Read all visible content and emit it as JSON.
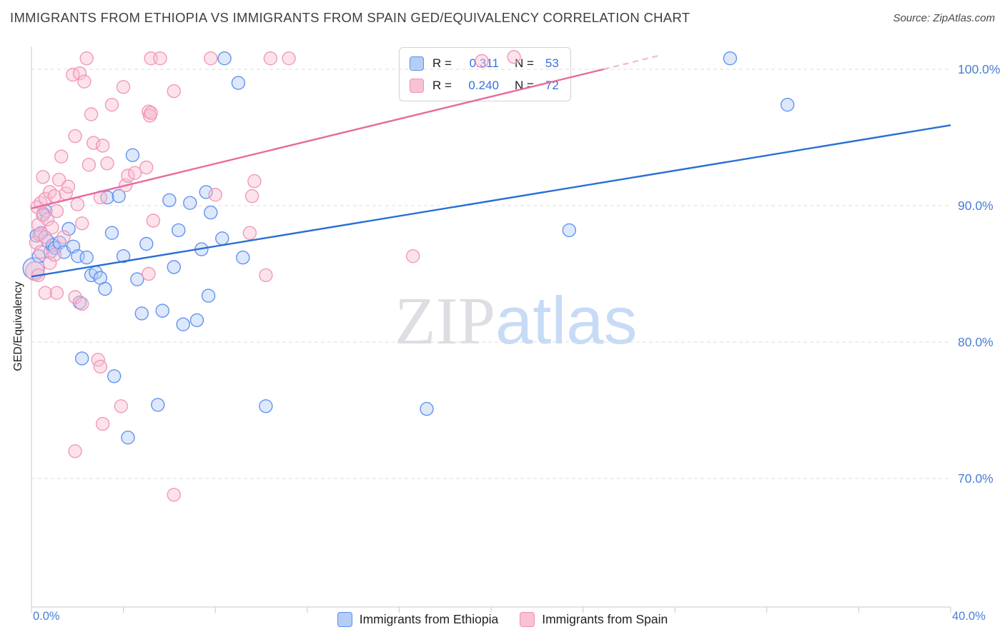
{
  "header": {
    "title": "IMMIGRANTS FROM ETHIOPIA VS IMMIGRANTS FROM SPAIN GED/EQUIVALENCY CORRELATION CHART",
    "source": "Source: ZipAtlas.com"
  },
  "watermark": {
    "zip": "ZIP",
    "atlas": "atlas"
  },
  "axes": {
    "y_label": "GED/Equivalency",
    "x_min_label": "0.0%",
    "x_max_label": "40.0%"
  },
  "stats_legend": {
    "rows": [
      {
        "r_label": "R =",
        "r_value": "0.311",
        "n_label": "N =",
        "n_value": "53",
        "swatch": {
          "bg": "#b3cdf6",
          "border": "#5b8def"
        }
      },
      {
        "r_label": "R =",
        "r_value": "0.240",
        "n_label": "N =",
        "n_value": "72",
        "swatch": {
          "bg": "#f9c2d3",
          "border": "#ef8fb4"
        }
      }
    ]
  },
  "legend": {
    "items": [
      {
        "label": "Immigrants from Ethiopia",
        "swatch": {
          "bg": "#b3cdf6",
          "border": "#5b8def"
        }
      },
      {
        "label": "Immigrants from Spain",
        "swatch": {
          "bg": "#f9c2d3",
          "border": "#ef8fb4"
        }
      }
    ]
  },
  "chart_data": {
    "type": "scatter",
    "title": "IMMIGRANTS FROM ETHIOPIA VS IMMIGRANTS FROM SPAIN GED/EQUIVALENCY CORRELATION CHART",
    "xlabel": "",
    "ylabel": "GED/Equivalency",
    "x_range": [
      0,
      40
    ],
    "y_range": [
      60.6,
      101.7
    ],
    "x_tick_step": 4,
    "x_tick_labels_shown": [
      "0.0%",
      "40.0%"
    ],
    "grid": "on",
    "legend_position": "bottom",
    "y_gridlines": [
      {
        "value": 100,
        "label": "100.0%"
      },
      {
        "value": 90,
        "label": "90.0%"
      },
      {
        "value": 80,
        "label": "80.0%"
      },
      {
        "value": 70,
        "label": "70.0%"
      }
    ],
    "series": [
      {
        "name": "Immigrants from Ethiopia",
        "R": 0.311,
        "N": 53,
        "stroke": "#5b8def",
        "fill": "#b3cdf6",
        "points": [
          [
            0.1,
            85.4,
            15
          ],
          [
            0.22,
            87.8
          ],
          [
            0.32,
            86.3
          ],
          [
            0.42,
            88.0
          ],
          [
            0.52,
            89.4
          ],
          [
            0.62,
            89.6
          ],
          [
            0.72,
            87.4
          ],
          [
            0.82,
            86.6
          ],
          [
            0.92,
            87.1
          ],
          [
            1.02,
            86.9
          ],
          [
            1.22,
            87.3
          ],
          [
            1.42,
            86.6
          ],
          [
            1.62,
            88.3
          ],
          [
            1.82,
            87.0
          ],
          [
            2.02,
            86.3
          ],
          [
            2.1,
            82.9
          ],
          [
            2.2,
            78.8
          ],
          [
            2.4,
            86.2
          ],
          [
            2.6,
            84.9
          ],
          [
            2.8,
            85.1
          ],
          [
            3.0,
            84.7
          ],
          [
            3.2,
            83.9
          ],
          [
            3.3,
            90.6
          ],
          [
            3.5,
            88.0
          ],
          [
            3.6,
            77.5
          ],
          [
            3.8,
            90.7
          ],
          [
            4.0,
            86.3
          ],
          [
            4.2,
            73.0
          ],
          [
            4.4,
            93.7
          ],
          [
            4.6,
            84.6
          ],
          [
            4.8,
            82.1
          ],
          [
            5.0,
            87.2
          ],
          [
            5.5,
            75.4
          ],
          [
            5.7,
            82.3
          ],
          [
            6.0,
            90.4
          ],
          [
            6.2,
            85.5
          ],
          [
            6.4,
            88.2
          ],
          [
            6.6,
            81.3
          ],
          [
            6.9,
            90.2
          ],
          [
            7.2,
            81.6
          ],
          [
            7.4,
            86.8
          ],
          [
            7.6,
            91.0
          ],
          [
            7.7,
            83.4
          ],
          [
            7.8,
            89.5
          ],
          [
            8.3,
            87.6
          ],
          [
            8.4,
            100.8
          ],
          [
            9.0,
            99.0
          ],
          [
            9.2,
            86.2
          ],
          [
            10.2,
            75.3
          ],
          [
            17.2,
            75.1
          ],
          [
            23.4,
            88.2
          ],
          [
            30.4,
            100.8
          ],
          [
            32.9,
            97.4
          ]
        ]
      },
      {
        "name": "Immigrants from Spain",
        "R": 0.24,
        "N": 72,
        "stroke": "#f092b6",
        "fill": "#f9c2d3",
        "points": [
          [
            0.15,
            85.2,
            13
          ],
          [
            0.2,
            87.3
          ],
          [
            0.25,
            89.9
          ],
          [
            0.3,
            88.6
          ],
          [
            0.3,
            84.9
          ],
          [
            0.35,
            87.9
          ],
          [
            0.4,
            90.2
          ],
          [
            0.4,
            86.6
          ],
          [
            0.5,
            92.1
          ],
          [
            0.5,
            89.3
          ],
          [
            0.6,
            90.5
          ],
          [
            0.6,
            87.7
          ],
          [
            0.6,
            83.6
          ],
          [
            0.7,
            89.0
          ],
          [
            0.8,
            91.0
          ],
          [
            0.8,
            85.8
          ],
          [
            0.9,
            88.4
          ],
          [
            1.0,
            90.7
          ],
          [
            1.0,
            86.4
          ],
          [
            1.1,
            89.6
          ],
          [
            1.1,
            83.6
          ],
          [
            1.2,
            91.9
          ],
          [
            1.3,
            93.6
          ],
          [
            1.4,
            87.7
          ],
          [
            1.5,
            90.9
          ],
          [
            1.6,
            91.4
          ],
          [
            1.8,
            99.6
          ],
          [
            1.9,
            95.1
          ],
          [
            1.9,
            83.3
          ],
          [
            1.9,
            72.0
          ],
          [
            2.0,
            90.1
          ],
          [
            2.1,
            99.7
          ],
          [
            2.2,
            88.7
          ],
          [
            2.2,
            82.8
          ],
          [
            2.3,
            99.1
          ],
          [
            2.4,
            100.8
          ],
          [
            2.5,
            93.0
          ],
          [
            2.6,
            96.7
          ],
          [
            2.7,
            94.6
          ],
          [
            2.9,
            78.7
          ],
          [
            3.0,
            90.6
          ],
          [
            3.0,
            78.2
          ],
          [
            3.1,
            94.4
          ],
          [
            3.1,
            74.0
          ],
          [
            3.3,
            93.1
          ],
          [
            3.5,
            97.4
          ],
          [
            3.9,
            75.3
          ],
          [
            4.0,
            98.7
          ],
          [
            4.1,
            91.5
          ],
          [
            4.2,
            92.2
          ],
          [
            4.5,
            92.4
          ],
          [
            5.0,
            92.8
          ],
          [
            5.1,
            96.9
          ],
          [
            5.1,
            85.0
          ],
          [
            5.15,
            96.6
          ],
          [
            5.2,
            100.8
          ],
          [
            5.2,
            96.8
          ],
          [
            5.3,
            88.9
          ],
          [
            5.6,
            100.8
          ],
          [
            6.2,
            98.4
          ],
          [
            6.2,
            68.8
          ],
          [
            7.8,
            100.8
          ],
          [
            8.0,
            90.8
          ],
          [
            9.5,
            88.0
          ],
          [
            9.6,
            90.7
          ],
          [
            9.7,
            91.8
          ],
          [
            10.2,
            84.9
          ],
          [
            10.4,
            100.8
          ],
          [
            11.2,
            100.8
          ],
          [
            16.6,
            86.3
          ],
          [
            19.6,
            100.6
          ],
          [
            21.0,
            100.9
          ]
        ]
      }
    ],
    "trendlines": [
      {
        "series": "Immigrants from Ethiopia",
        "color": "#2a6fd4",
        "segments": [
          {
            "x1": 0,
            "y1": 84.8,
            "x2": 40,
            "y2": 95.9,
            "dashed": false
          }
        ]
      },
      {
        "series": "Immigrants from Spain",
        "color": "#e8699d",
        "segments": [
          {
            "x1": 0,
            "y1": 89.8,
            "x2": 24.9,
            "y2": 100.0,
            "dashed": false
          },
          {
            "x1": 24.9,
            "y1": 100.0,
            "x2": 27.3,
            "y2": 101.0,
            "dashed": true
          }
        ]
      }
    ]
  }
}
